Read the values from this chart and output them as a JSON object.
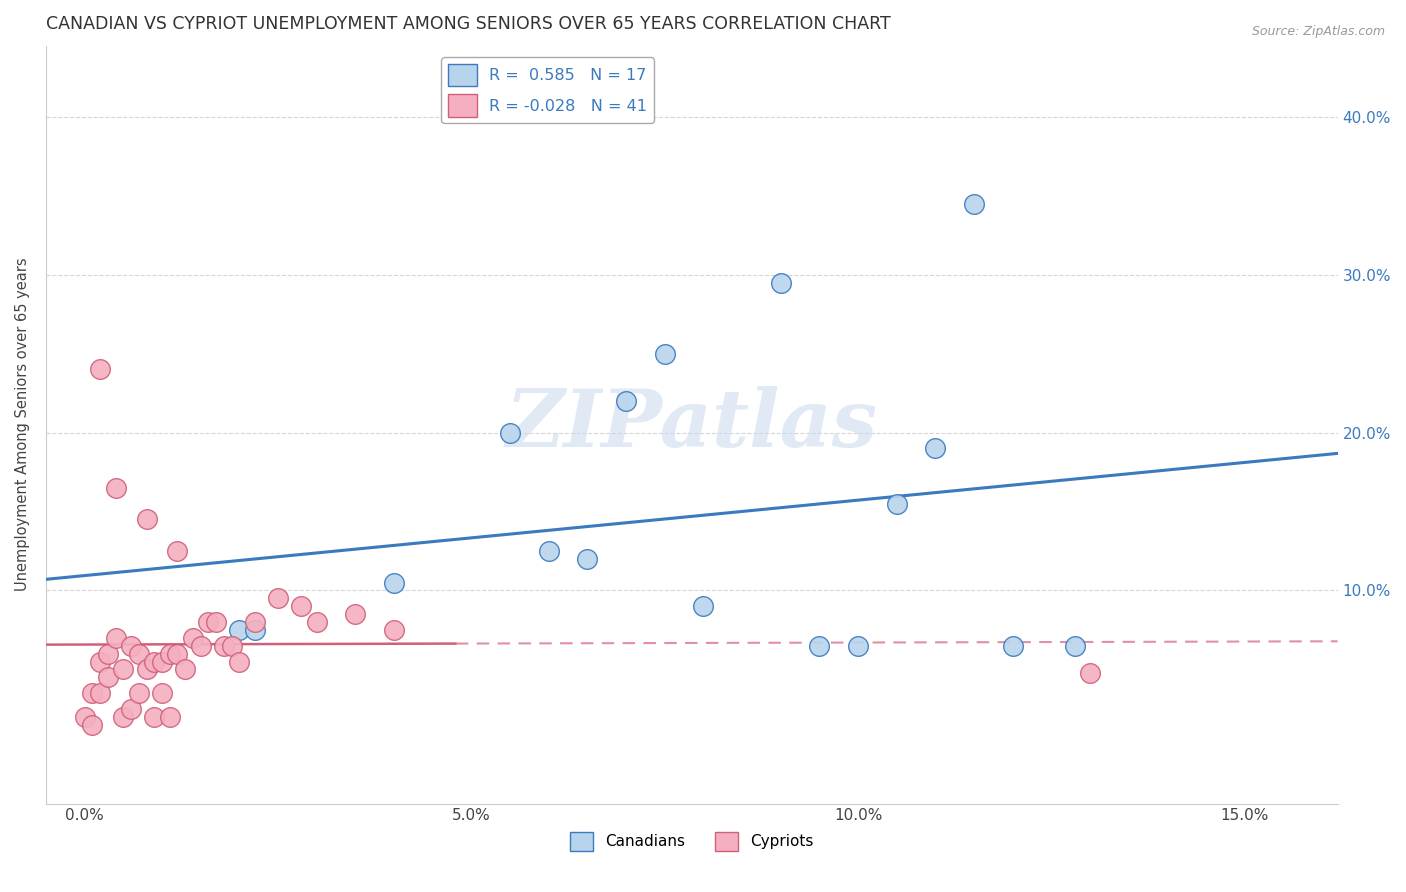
{
  "title": "CANADIAN VS CYPRIOT UNEMPLOYMENT AMONG SENIORS OVER 65 YEARS CORRELATION CHART",
  "source": "Source: ZipAtlas.com",
  "ylabel": "Unemployment Among Seniors over 65 years",
  "x_tick_labels": [
    "0.0%",
    "5.0%",
    "10.0%",
    "15.0%"
  ],
  "x_tick_values": [
    0.0,
    0.05,
    0.1,
    0.15
  ],
  "y_tick_labels": [
    "10.0%",
    "20.0%",
    "30.0%",
    "40.0%"
  ],
  "y_tick_values": [
    0.1,
    0.2,
    0.3,
    0.4
  ],
  "xlim": [
    -0.005,
    0.162
  ],
  "ylim": [
    -0.035,
    0.445
  ],
  "legend_r_canadian": "R =  0.585",
  "legend_n_canadian": "N = 17",
  "legend_r_cypriot": "R = -0.028",
  "legend_n_cypriot": "N = 41",
  "canadian_color": "#b8d4ed",
  "cypriot_color": "#f4b0c0",
  "canadian_line_color": "#3a7abf",
  "cypriot_line_color_solid": "#d0607a",
  "cypriot_line_color_dash": "#e090a0",
  "watermark": "ZIPatlas",
  "background_color": "#ffffff",
  "grid_color": "#cccccc",
  "canadian_x": [
    0.02,
    0.022,
    0.04,
    0.055,
    0.06,
    0.065,
    0.07,
    0.075,
    0.08,
    0.09,
    0.095,
    0.1,
    0.105,
    0.11,
    0.12,
    0.128,
    0.115
  ],
  "canadian_y": [
    0.075,
    0.075,
    0.105,
    0.2,
    0.125,
    0.12,
    0.22,
    0.25,
    0.09,
    0.295,
    0.065,
    0.065,
    0.155,
    0.19,
    0.065,
    0.065,
    0.345
  ],
  "cypriot_x": [
    0.0,
    0.001,
    0.001,
    0.002,
    0.002,
    0.003,
    0.003,
    0.004,
    0.005,
    0.005,
    0.006,
    0.006,
    0.007,
    0.007,
    0.008,
    0.009,
    0.009,
    0.01,
    0.01,
    0.011,
    0.011,
    0.012,
    0.013,
    0.014,
    0.015,
    0.016,
    0.017,
    0.018,
    0.019,
    0.02,
    0.022,
    0.025,
    0.028,
    0.03,
    0.035,
    0.04,
    0.002,
    0.004,
    0.008,
    0.012,
    0.13
  ],
  "cypriot_y": [
    0.02,
    0.035,
    0.015,
    0.055,
    0.035,
    0.06,
    0.045,
    0.07,
    0.05,
    0.02,
    0.065,
    0.025,
    0.06,
    0.035,
    0.05,
    0.055,
    0.02,
    0.055,
    0.035,
    0.06,
    0.02,
    0.06,
    0.05,
    0.07,
    0.065,
    0.08,
    0.08,
    0.065,
    0.065,
    0.055,
    0.08,
    0.095,
    0.09,
    0.08,
    0.085,
    0.075,
    0.24,
    0.165,
    0.145,
    0.125,
    0.048
  ]
}
